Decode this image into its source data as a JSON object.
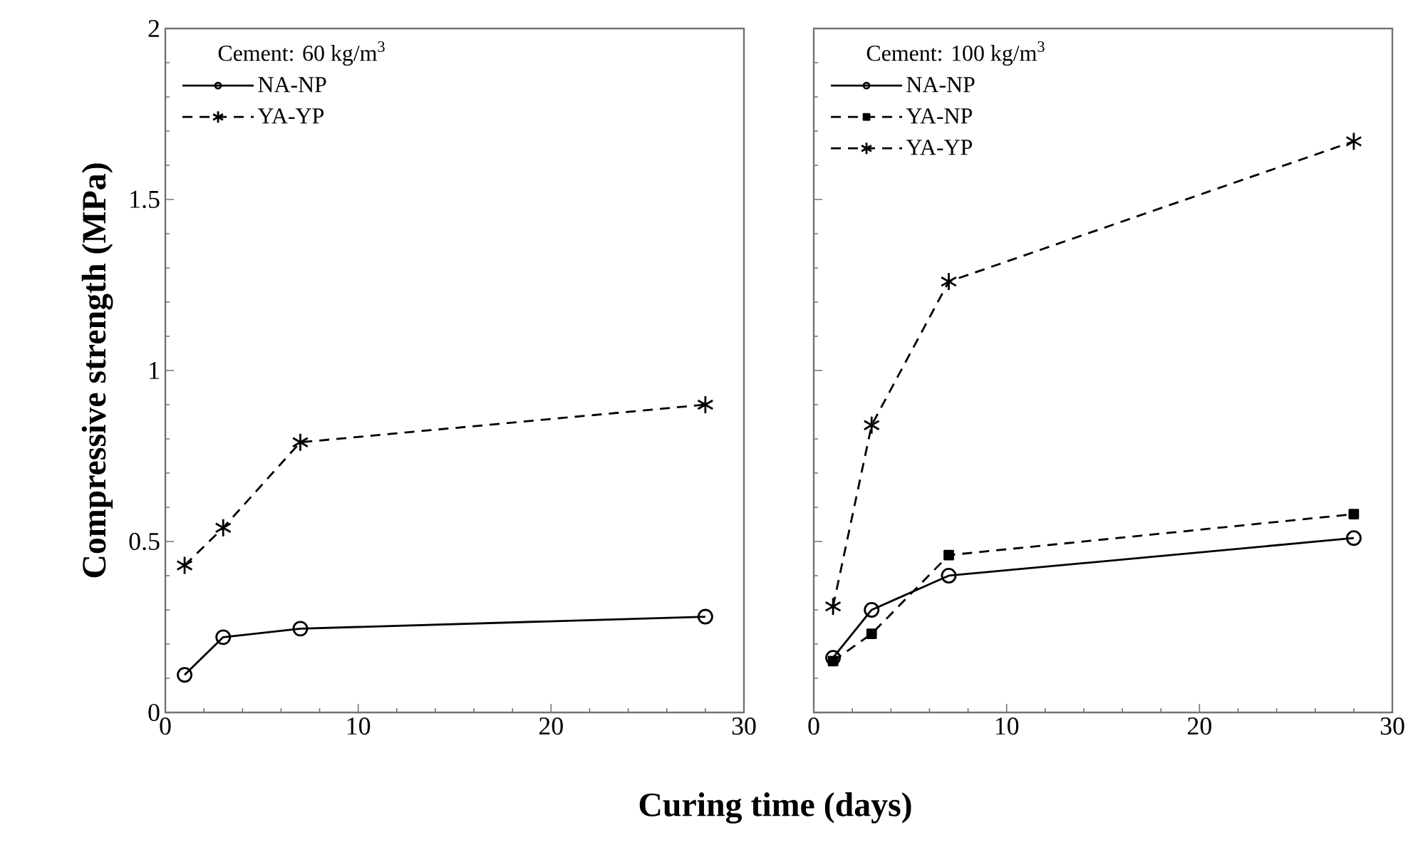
{
  "chart_data": [
    {
      "type": "line",
      "xlabel": "Curing time (days)",
      "ylabel": "Compressive strength (MPa)",
      "legend_title": "Cement:  60 kg/m$^{3}$",
      "legend": "top left",
      "grid": false,
      "x": [
        1,
        3,
        7,
        28
      ],
      "xlim": [
        0,
        30
      ],
      "xticks": [
        0,
        10,
        20,
        30
      ],
      "ylim": [
        0,
        2
      ],
      "yticks": [
        0,
        0.5,
        1,
        1.5,
        2
      ],
      "series": [
        {
          "name": "NA-NP",
          "color": "#000000",
          "marker": "circle",
          "line_style": "solid",
          "values": [
            0.11,
            0.22,
            0.245,
            0.28
          ]
        },
        {
          "name": "YA-YP",
          "color": "#000000",
          "marker": "cross",
          "line_style": "dashed",
          "values": [
            0.43,
            0.54,
            0.79,
            0.9
          ]
        }
      ]
    },
    {
      "type": "line",
      "legend_title": "Cement:  100 kg/m$^{3}$",
      "legend": "top left",
      "grid": false,
      "tick_labels": "x",
      "x": [
        1,
        3,
        7,
        28
      ],
      "xlim": [
        0,
        30
      ],
      "xticks": [
        0,
        10,
        20,
        30
      ],
      "ylim": [
        0,
        2
      ],
      "yticks": [
        0,
        0.5,
        1,
        1.5,
        2
      ],
      "series": [
        {
          "name": "NA-NP",
          "color": "#000000",
          "marker": "circle",
          "line_style": "solid",
          "values": [
            0.16,
            0.3,
            0.4,
            0.51
          ]
        },
        {
          "name": "YA-NP",
          "color": "#000000",
          "marker": "square",
          "line_style": "dashed",
          "values": [
            0.15,
            0.23,
            0.46,
            0.58
          ]
        },
        {
          "name": "YA-YP",
          "color": "#000000",
          "marker": "cross",
          "line_style": "dashed",
          "values": [
            0.31,
            0.84,
            1.26,
            1.67
          ]
        }
      ]
    }
  ]
}
